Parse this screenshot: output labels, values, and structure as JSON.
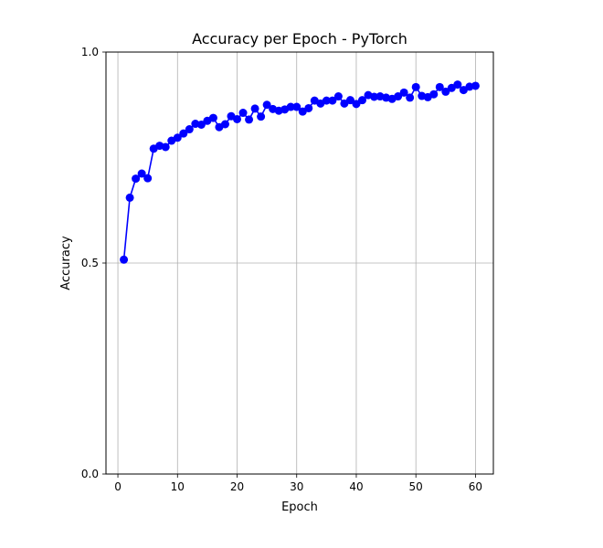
{
  "chart_data": {
    "type": "line",
    "title": "Accuracy per Epoch - PyTorch",
    "xlabel": "Epoch",
    "ylabel": "Accuracy",
    "xlim": [
      -2.0,
      63.0
    ],
    "ylim": [
      0.0,
      1.0
    ],
    "xticks": [
      0,
      10,
      20,
      30,
      40,
      50,
      60
    ],
    "xtick_labels": [
      "0",
      "10",
      "20",
      "30",
      "40",
      "50",
      "60"
    ],
    "yticks": [
      0.0,
      0.5,
      1.0
    ],
    "ytick_labels": [
      "0.0",
      "0.5",
      "1.0"
    ],
    "grid": true,
    "series": [
      {
        "color": "#0000ff",
        "marker": "circle",
        "x": [
          1,
          2,
          3,
          4,
          5,
          6,
          7,
          8,
          9,
          10,
          11,
          12,
          13,
          14,
          15,
          16,
          17,
          18,
          19,
          20,
          21,
          22,
          23,
          24,
          25,
          26,
          27,
          28,
          29,
          30,
          31,
          32,
          33,
          34,
          35,
          36,
          37,
          38,
          39,
          40,
          41,
          42,
          43,
          44,
          45,
          46,
          47,
          48,
          49,
          50,
          51,
          52,
          53,
          54,
          55,
          56,
          57,
          58,
          59,
          60
        ],
        "values": [
          0.508,
          0.655,
          0.7,
          0.712,
          0.701,
          0.771,
          0.778,
          0.775,
          0.79,
          0.797,
          0.807,
          0.817,
          0.83,
          0.828,
          0.837,
          0.844,
          0.822,
          0.829,
          0.848,
          0.841,
          0.856,
          0.84,
          0.866,
          0.847,
          0.875,
          0.865,
          0.861,
          0.864,
          0.87,
          0.87,
          0.859,
          0.867,
          0.885,
          0.878,
          0.885,
          0.885,
          0.895,
          0.878,
          0.886,
          0.877,
          0.886,
          0.898,
          0.894,
          0.895,
          0.892,
          0.889,
          0.895,
          0.904,
          0.892,
          0.917,
          0.896,
          0.893,
          0.9,
          0.917,
          0.906,
          0.915,
          0.923,
          0.91,
          0.918,
          0.92
        ]
      }
    ]
  }
}
